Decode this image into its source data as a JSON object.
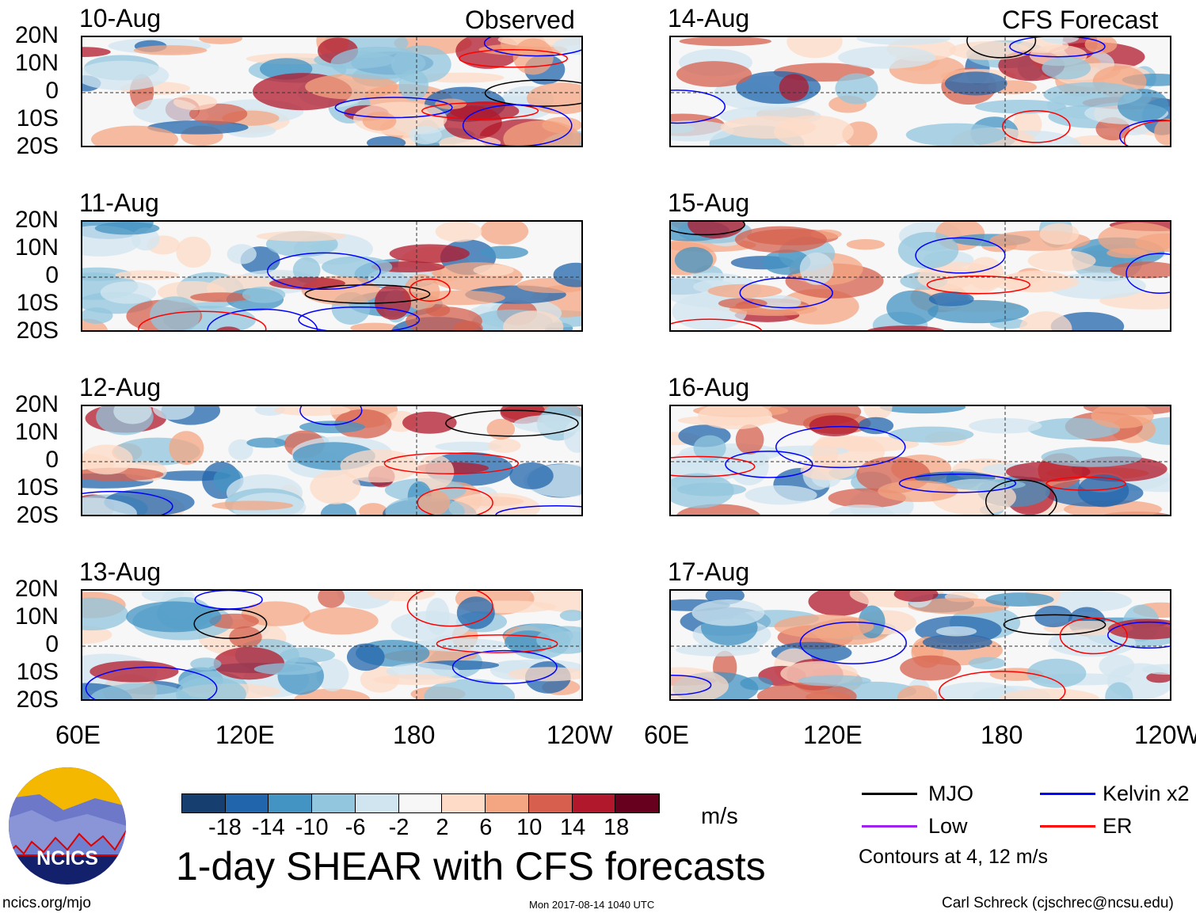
{
  "header": {
    "observed_label": "Observed",
    "forecast_label": "CFS Forecast"
  },
  "panels": [
    {
      "date": "10-Aug",
      "group": "observed"
    },
    {
      "date": "11-Aug",
      "group": "observed"
    },
    {
      "date": "12-Aug",
      "group": "observed"
    },
    {
      "date": "13-Aug",
      "group": "observed"
    },
    {
      "date": "14-Aug",
      "group": "forecast"
    },
    {
      "date": "15-Aug",
      "group": "forecast"
    },
    {
      "date": "16-Aug",
      "group": "forecast"
    },
    {
      "date": "17-Aug",
      "group": "forecast"
    }
  ],
  "lat_labels": [
    "20N",
    "10N",
    "0",
    "10S",
    "20S"
  ],
  "lon_labels": [
    "60E",
    "120E",
    "180",
    "120W"
  ],
  "colorbar": {
    "unit": "m/s",
    "ticks": [
      "-18",
      "-14",
      "-10",
      "-6",
      "-2",
      "2",
      "6",
      "10",
      "14",
      "18"
    ],
    "colors": [
      "#163e6e",
      "#2166ac",
      "#4393c3",
      "#92c5de",
      "#d1e5f0",
      "#f7f7f7",
      "#fddbc7",
      "#f4a582",
      "#d6604d",
      "#b2182b",
      "#67001f"
    ]
  },
  "legend": {
    "items": [
      {
        "label": "MJO",
        "color": "#000000"
      },
      {
        "label": "Kelvin x2",
        "color": "#0000ff"
      },
      {
        "label": "Low",
        "color": "#a020f0"
      },
      {
        "label": "ER",
        "color": "#ff0000"
      }
    ],
    "contours_note": "Contours at 4, 12 m/s"
  },
  "footer": {
    "title": "1-day SHEAR with CFS forecasts",
    "logo_text": "NCICS",
    "url": "ncics.org/mjo",
    "timestamp": "Mon 2017-08-14 1040 UTC",
    "author": "Carl Schreck (cjschrec@ncsu.edu)"
  }
}
